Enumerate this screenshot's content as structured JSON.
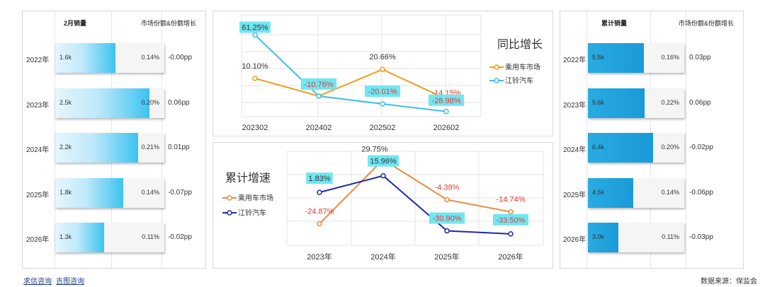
{
  "left_table": {
    "header_sales": "2月销量",
    "header_share": "市场份额&份额增长",
    "rows": [
      {
        "year": "2022年",
        "sales_label": "1.6k",
        "sales": 1.6,
        "share": "0.14%",
        "growth": "-0.00pp"
      },
      {
        "year": "2023年",
        "sales_label": "2.5k",
        "sales": 2.5,
        "share": "0.20%",
        "growth": "0.06pp"
      },
      {
        "year": "2024年",
        "sales_label": "2.2k",
        "sales": 2.2,
        "share": "0.21%",
        "growth": "0.01pp"
      },
      {
        "year": "2025年",
        "sales_label": "1.8k",
        "sales": 1.8,
        "share": "0.14%",
        "growth": "-0.07pp"
      },
      {
        "year": "2026年",
        "sales_label": "1.3k",
        "sales": 1.3,
        "share": "0.11%",
        "growth": "-0.02pp"
      }
    ],
    "max_sales": 2.9
  },
  "right_table": {
    "header_sales": "累计销量",
    "header_share": "市场份额&份额增长",
    "rows": [
      {
        "year": "2022年",
        "sales_label": "5.5k",
        "sales": 5.5,
        "share": "0.16%",
        "growth": "0.03pp"
      },
      {
        "year": "2023年",
        "sales_label": "5.6k",
        "sales": 5.6,
        "share": "0.22%",
        "growth": "0.06pp"
      },
      {
        "year": "2024年",
        "sales_label": "6.4k",
        "sales": 6.4,
        "share": "0.20%",
        "growth": "-0.02pp"
      },
      {
        "year": "2025年",
        "sales_label": "4.5k",
        "sales": 4.5,
        "share": "0.14%",
        "growth": "-0.06pp"
      },
      {
        "year": "2026年",
        "sales_label": "3.0k",
        "sales": 3.0,
        "share": "0.11%",
        "growth": "-0.03pp"
      }
    ],
    "max_sales": 9.5
  },
  "chart_data": [
    {
      "type": "line",
      "title": "同比增长",
      "categories": [
        "202302",
        "202402",
        "202502",
        "202602"
      ],
      "series": [
        {
          "name": "乘用车市场",
          "color": "#f39c1a",
          "values": [
            10.1,
            -10.76,
            20.66,
            -14.15
          ],
          "labels": [
            "10.10%",
            "",
            "20.66%",
            "-14.15%"
          ]
        },
        {
          "name": "江铃汽车",
          "color": "#3fbfe6",
          "values": [
            61.25,
            -10.76,
            -20.01,
            -28.98
          ],
          "labels": [
            "61.25%",
            "-10.76%",
            "-20.01%",
            "-28.98%"
          ]
        }
      ],
      "ylim": [
        -40,
        70
      ]
    },
    {
      "type": "line",
      "title": "累计增速",
      "categories": [
        "2023年",
        "2024年",
        "2025年",
        "2026年"
      ],
      "series": [
        {
          "name": "乘用车市场",
          "color": "#ef8a3a",
          "values": [
            -24.87,
            29.75,
            -4.38,
            -14.74
          ],
          "labels": [
            "-24.87%",
            "29.75%",
            "-4.38%",
            "-14.74%"
          ]
        },
        {
          "name": "江铃汽车",
          "color": "#1c2aa6",
          "values": [
            1.83,
            15.96,
            -30.9,
            -33.5
          ],
          "labels": [
            "1.83%",
            "15.96%",
            "-30.90%",
            "-33.50%"
          ]
        }
      ],
      "ylim": [
        -45,
        35
      ]
    }
  ],
  "footer": {
    "link1": "求信咨询",
    "link2": "吉图咨询",
    "source": "数据来源：保监会"
  }
}
